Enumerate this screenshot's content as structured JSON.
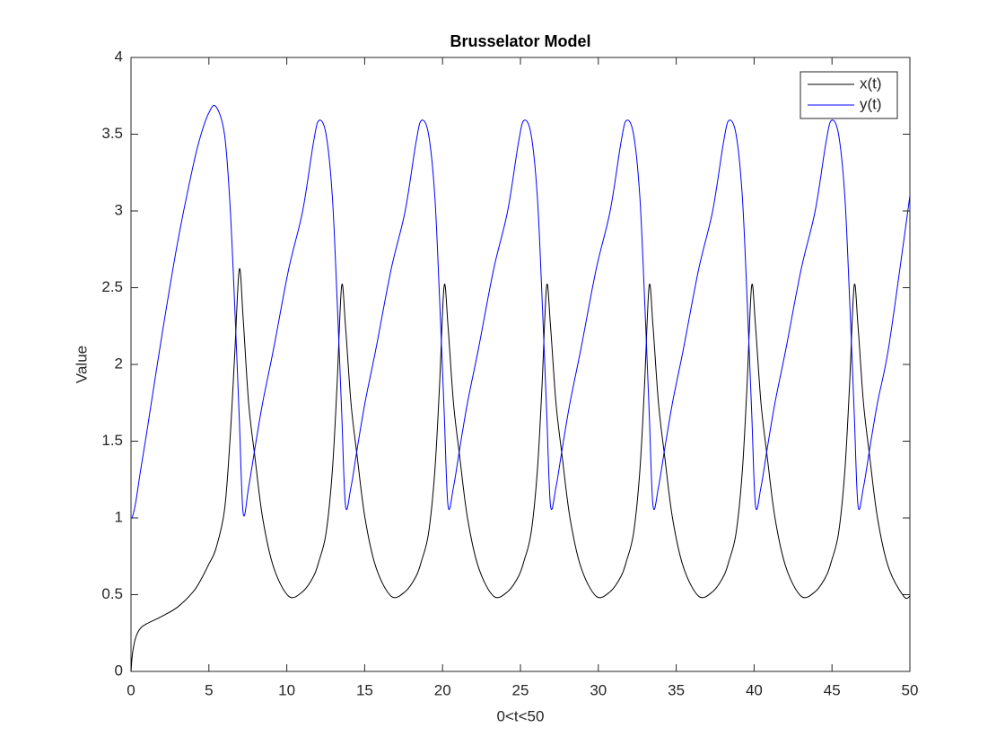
{
  "chart_data": {
    "type": "line",
    "title": "Brusselator Model",
    "xlabel": "0<t<50",
    "ylabel": "Value",
    "x": [
      0,
      0.1,
      0.3,
      0.6,
      1,
      2,
      3,
      4,
      4.5,
      5,
      5.45,
      6,
      6.35,
      6.65,
      6.95,
      7.2,
      7.55,
      7.95,
      8.45,
      9.15,
      10.12,
      11.02,
      11.72,
      12.07,
      12.52,
      12.92,
      13.22,
      13.52,
      13.77,
      14.12,
      14.52,
      15.02,
      15.72,
      16.7,
      17.6,
      18.3,
      18.65,
      19.1,
      19.5,
      19.8,
      20.1,
      20.35,
      20.7,
      21.1,
      21.6,
      22.3,
      23.28,
      24.18,
      24.88,
      25.23,
      25.68,
      26.08,
      26.38,
      26.68,
      26.93,
      27.28,
      27.68,
      28.18,
      28.88,
      29.86,
      30.76,
      31.46,
      31.81,
      32.26,
      32.66,
      32.96,
      33.26,
      33.51,
      33.86,
      34.26,
      34.76,
      35.46,
      36.44,
      37.34,
      38.04,
      38.39,
      38.84,
      39.24,
      39.54,
      39.84,
      40.09,
      40.44,
      40.84,
      41.34,
      42.04,
      43.02,
      43.92,
      44.62,
      44.97,
      45.42,
      45.82,
      46.12,
      46.42,
      46.67,
      47.02,
      47.42,
      47.92,
      48.62,
      49.6,
      50
    ],
    "series": [
      {
        "name": "x(t)",
        "color": "#000000",
        "values": [
          0,
          0.12,
          0.22,
          0.28,
          0.31,
          0.36,
          0.42,
          0.52,
          0.6,
          0.7,
          0.8,
          1.05,
          1.5,
          2.05,
          2.62,
          2.3,
          1.75,
          1.4,
          1.0,
          0.68,
          0.49,
          0.52,
          0.62,
          0.72,
          0.9,
          1.3,
          1.85,
          2.51,
          2.25,
          1.75,
          1.4,
          1.0,
          0.68,
          0.49,
          0.52,
          0.62,
          0.72,
          0.9,
          1.3,
          1.85,
          2.51,
          2.25,
          1.75,
          1.4,
          1.0,
          0.68,
          0.49,
          0.52,
          0.62,
          0.72,
          0.9,
          1.3,
          1.85,
          2.51,
          2.25,
          1.75,
          1.4,
          1.0,
          0.68,
          0.49,
          0.52,
          0.62,
          0.72,
          0.9,
          1.3,
          1.85,
          2.51,
          2.25,
          1.75,
          1.4,
          1.0,
          0.68,
          0.49,
          0.52,
          0.62,
          0.72,
          0.9,
          1.3,
          1.85,
          2.51,
          2.25,
          1.75,
          1.4,
          1.0,
          0.68,
          0.49,
          0.52,
          0.62,
          0.72,
          0.9,
          1.3,
          1.85,
          2.51,
          2.25,
          1.75,
          1.4,
          1.0,
          0.68,
          0.49,
          0.49
        ]
      },
      {
        "name": "y(t)",
        "color": "#0000ff",
        "values": [
          1.0,
          1.01,
          1.1,
          1.3,
          1.55,
          2.2,
          2.8,
          3.3,
          3.5,
          3.64,
          3.68,
          3.5,
          3.05,
          2.4,
          1.65,
          1.03,
          1.2,
          1.45,
          1.75,
          2.1,
          2.62,
          3.0,
          3.45,
          3.59,
          3.5,
          3.1,
          2.45,
          1.7,
          1.08,
          1.2,
          1.45,
          1.75,
          2.1,
          2.62,
          3.0,
          3.45,
          3.59,
          3.5,
          3.1,
          2.45,
          1.7,
          1.08,
          1.2,
          1.45,
          1.75,
          2.1,
          2.62,
          3.0,
          3.45,
          3.59,
          3.5,
          3.1,
          2.45,
          1.7,
          1.08,
          1.2,
          1.45,
          1.75,
          2.1,
          2.62,
          3.0,
          3.45,
          3.59,
          3.5,
          3.1,
          2.45,
          1.7,
          1.08,
          1.2,
          1.45,
          1.75,
          2.1,
          2.62,
          3.0,
          3.45,
          3.59,
          3.5,
          3.1,
          2.45,
          1.7,
          1.08,
          1.2,
          1.45,
          1.75,
          2.1,
          2.62,
          3.0,
          3.45,
          3.59,
          3.5,
          3.1,
          2.45,
          1.7,
          1.08,
          1.2,
          1.45,
          1.75,
          2.1,
          2.8,
          3.1
        ]
      }
    ],
    "xlim": [
      0,
      50
    ],
    "xticks": [
      0,
      5,
      10,
      15,
      20,
      25,
      30,
      35,
      40,
      45,
      50
    ],
    "ylim": [
      0,
      4
    ],
    "yticks": [
      0,
      0.5,
      1,
      1.5,
      2,
      2.5,
      3,
      3.5,
      4
    ],
    "legend": "northeast",
    "grid": false
  }
}
